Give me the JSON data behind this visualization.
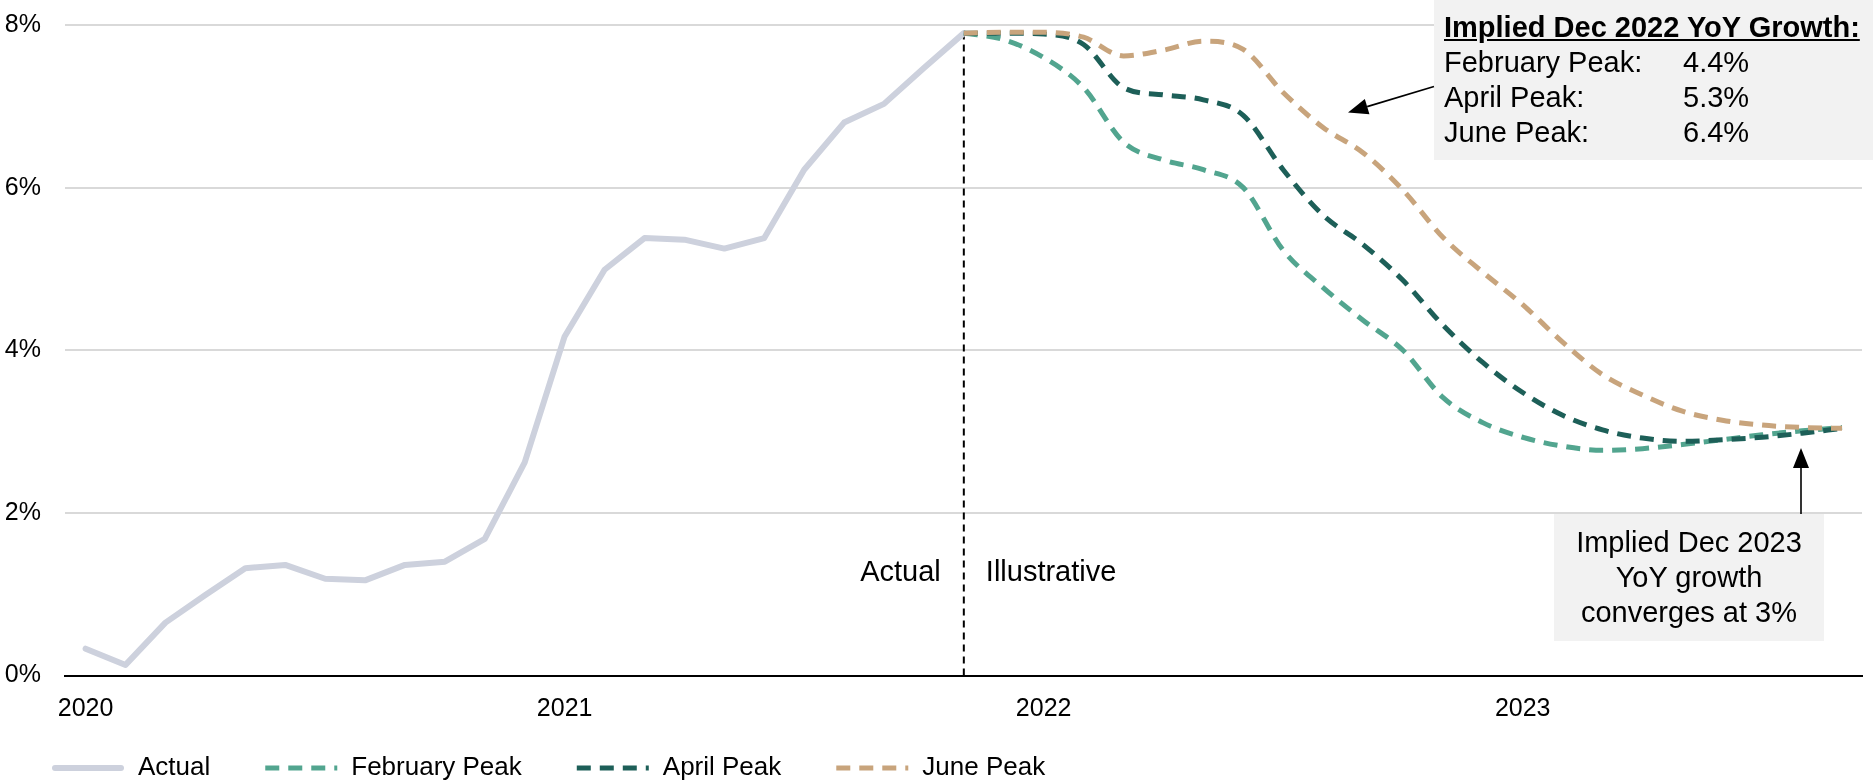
{
  "chart_data": {
    "type": "line",
    "x": [
      "2020-01",
      "2020-02",
      "2020-03",
      "2020-04",
      "2020-05",
      "2020-06",
      "2020-07",
      "2020-08",
      "2020-09",
      "2020-10",
      "2020-11",
      "2020-12",
      "2021-01",
      "2021-02",
      "2021-03",
      "2021-04",
      "2021-05",
      "2021-06",
      "2021-07",
      "2021-08",
      "2021-09",
      "2021-10",
      "2021-11",
      "2021-12",
      "2022-01",
      "2022-02",
      "2022-03",
      "2022-04",
      "2022-05",
      "2022-06",
      "2022-07",
      "2022-08",
      "2022-09",
      "2022-10",
      "2022-11",
      "2022-12",
      "2023-01",
      "2023-02",
      "2023-03",
      "2023-04",
      "2023-05",
      "2023-06",
      "2023-07",
      "2023-08",
      "2023-09"
    ],
    "series": [
      {
        "name": "Actual",
        "color": "#cdd1dd",
        "line_style": "solid",
        "values": [
          0.33,
          0.13,
          0.65,
          0.99,
          1.32,
          1.36,
          1.19,
          1.17,
          1.36,
          1.4,
          1.68,
          2.62,
          4.17,
          4.99,
          5.38,
          5.36,
          5.25,
          5.38,
          6.22,
          6.8,
          7.03,
          7.47,
          7.9,
          null,
          null,
          null,
          null,
          null,
          null,
          null,
          null,
          null,
          null,
          null,
          null,
          null,
          null,
          null,
          null,
          null,
          null,
          null,
          null,
          null,
          null
        ]
      },
      {
        "name": "February Peak",
        "color": "#52a58f",
        "line_style": "dashed",
        "values": [
          null,
          null,
          null,
          null,
          null,
          null,
          null,
          null,
          null,
          null,
          null,
          null,
          null,
          null,
          null,
          null,
          null,
          null,
          null,
          null,
          null,
          null,
          7.9,
          7.82,
          7.6,
          7.23,
          6.56,
          6.34,
          6.22,
          6.0,
          5.23,
          4.77,
          4.37,
          4.0,
          3.42,
          3.11,
          2.93,
          2.82,
          2.77,
          2.79,
          2.84,
          2.9,
          2.96,
          3.01,
          3.05
        ]
      },
      {
        "name": "April Peak",
        "color": "#1d5f58",
        "line_style": "dashed",
        "values": [
          null,
          null,
          null,
          null,
          null,
          null,
          null,
          null,
          null,
          null,
          null,
          null,
          null,
          null,
          null,
          null,
          null,
          null,
          null,
          null,
          null,
          null,
          7.9,
          7.9,
          7.89,
          7.76,
          7.23,
          7.14,
          7.08,
          6.89,
          6.22,
          5.66,
          5.3,
          4.86,
          4.31,
          3.85,
          3.48,
          3.2,
          3.02,
          2.92,
          2.88,
          2.9,
          2.93,
          2.98,
          3.04
        ]
      },
      {
        "name": "June Peak",
        "color": "#c8a47c",
        "line_style": "dashed",
        "values": [
          null,
          null,
          null,
          null,
          null,
          null,
          null,
          null,
          null,
          null,
          null,
          null,
          null,
          null,
          null,
          null,
          null,
          null,
          null,
          null,
          null,
          null,
          7.9,
          7.91,
          7.91,
          7.85,
          7.62,
          7.69,
          7.8,
          7.7,
          7.17,
          6.74,
          6.43,
          5.97,
          5.39,
          4.96,
          4.56,
          4.1,
          3.7,
          3.45,
          3.25,
          3.14,
          3.08,
          3.05,
          3.04
        ]
      }
    ],
    "xlim": [
      "2019-12-16",
      "2023-09-16"
    ],
    "xticks": [
      "2020",
      "2021",
      "2022",
      "2023"
    ],
    "ylim": [
      0,
      8
    ],
    "yticks": [
      {
        "value": 0,
        "label": "0%"
      },
      {
        "value": 2,
        "label": "2%"
      },
      {
        "value": 4,
        "label": "4%"
      },
      {
        "value": 6,
        "label": "6%"
      },
      {
        "value": 8,
        "label": "8%"
      }
    ],
    "grid": "y",
    "legend": "bottom left",
    "ref_lines": [
      {
        "axis": "x",
        "value": "2021-11",
        "color": "#000000",
        "line_style": "dashed"
      }
    ],
    "annotations": [
      "Actual",
      "Illustrative",
      "Implied Dec 2022 YoY Growth:\nFebruary Peak:\t4.4%\nApril Peak:\t5.3%\nJune Peak:\t6.4%",
      "Implied Dec 2023\nYoY growth\nconverges at 3%"
    ]
  }
}
